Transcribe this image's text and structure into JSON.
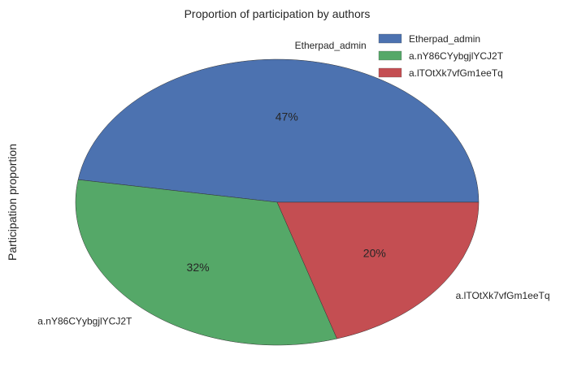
{
  "chart_data": {
    "type": "pie",
    "title": "Proportion of participation by authors",
    "ylabel": "Participation proportion",
    "categories": [
      "Etherpad_admin",
      "a.nY86CYybgjlYCJ2T",
      "a.lTOtXk7vfGm1eeTq"
    ],
    "values": [
      47,
      32,
      20
    ],
    "percent_labels": [
      "47%",
      "32%",
      "20%"
    ],
    "colors": [
      "#4C72B0",
      "#55A868",
      "#C44E52"
    ],
    "legend": {
      "placement": "top-right",
      "entries": [
        "Etherpad_admin",
        "a.nY86CYybgjlYCJ2T",
        "a.lTOtXk7vfGm1eeTq"
      ]
    },
    "start_angle_deg": 0,
    "direction": "counterclockwise"
  }
}
